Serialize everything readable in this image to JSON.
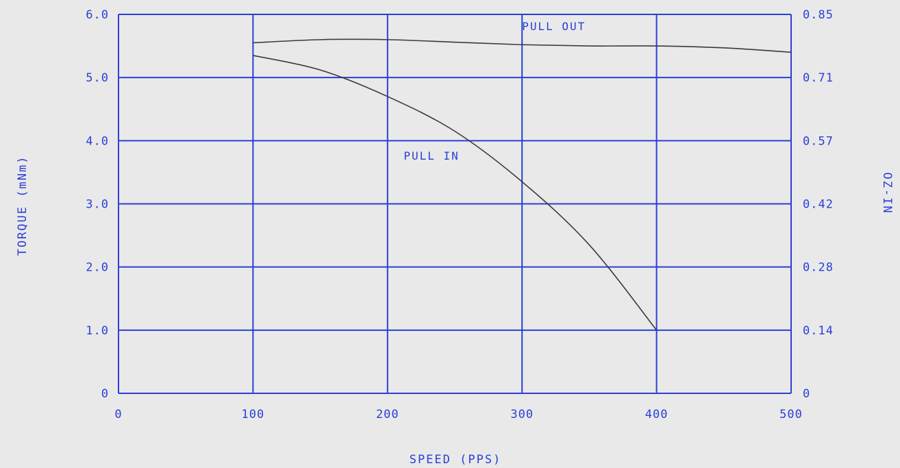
{
  "chart_data": {
    "type": "line",
    "xlabel": "SPEED (PPS)",
    "ylabel": "TORQUE (mNm)",
    "y2label": "OZ-IN",
    "xlim": [
      0,
      500
    ],
    "ylim": [
      0,
      6
    ],
    "grid": true,
    "colors": {
      "axis": "#2a3fd6",
      "curve": "#3a3a3a",
      "background": "#e9e9e9"
    },
    "x_ticks": [
      0,
      100,
      200,
      300,
      400,
      500
    ],
    "x_tick_labels": [
      "0",
      "100",
      "200",
      "300",
      "400",
      "500"
    ],
    "y_ticks": [
      0,
      1,
      2,
      3,
      4,
      5,
      6
    ],
    "y_tick_labels": [
      "0",
      "1.0",
      "2.0",
      "3.0",
      "4.0",
      "5.0",
      "6.0"
    ],
    "y2_tick_labels": [
      "0",
      "0.14",
      "0.28",
      "0.42",
      "0.57",
      "0.71",
      "0.85"
    ],
    "series": [
      {
        "name": "PULL OUT",
        "label_at": [
          300,
          5.75
        ],
        "x": [
          100,
          150,
          200,
          250,
          300,
          350,
          400,
          450,
          500
        ],
        "y": [
          5.55,
          5.6,
          5.6,
          5.56,
          5.52,
          5.5,
          5.5,
          5.47,
          5.4
        ]
      },
      {
        "name": "PULL IN",
        "label_at": [
          212,
          3.7
        ],
        "x": [
          100,
          150,
          200,
          250,
          300,
          350,
          400
        ],
        "y": [
          5.35,
          5.12,
          4.7,
          4.15,
          3.35,
          2.35,
          1.0
        ]
      }
    ]
  }
}
